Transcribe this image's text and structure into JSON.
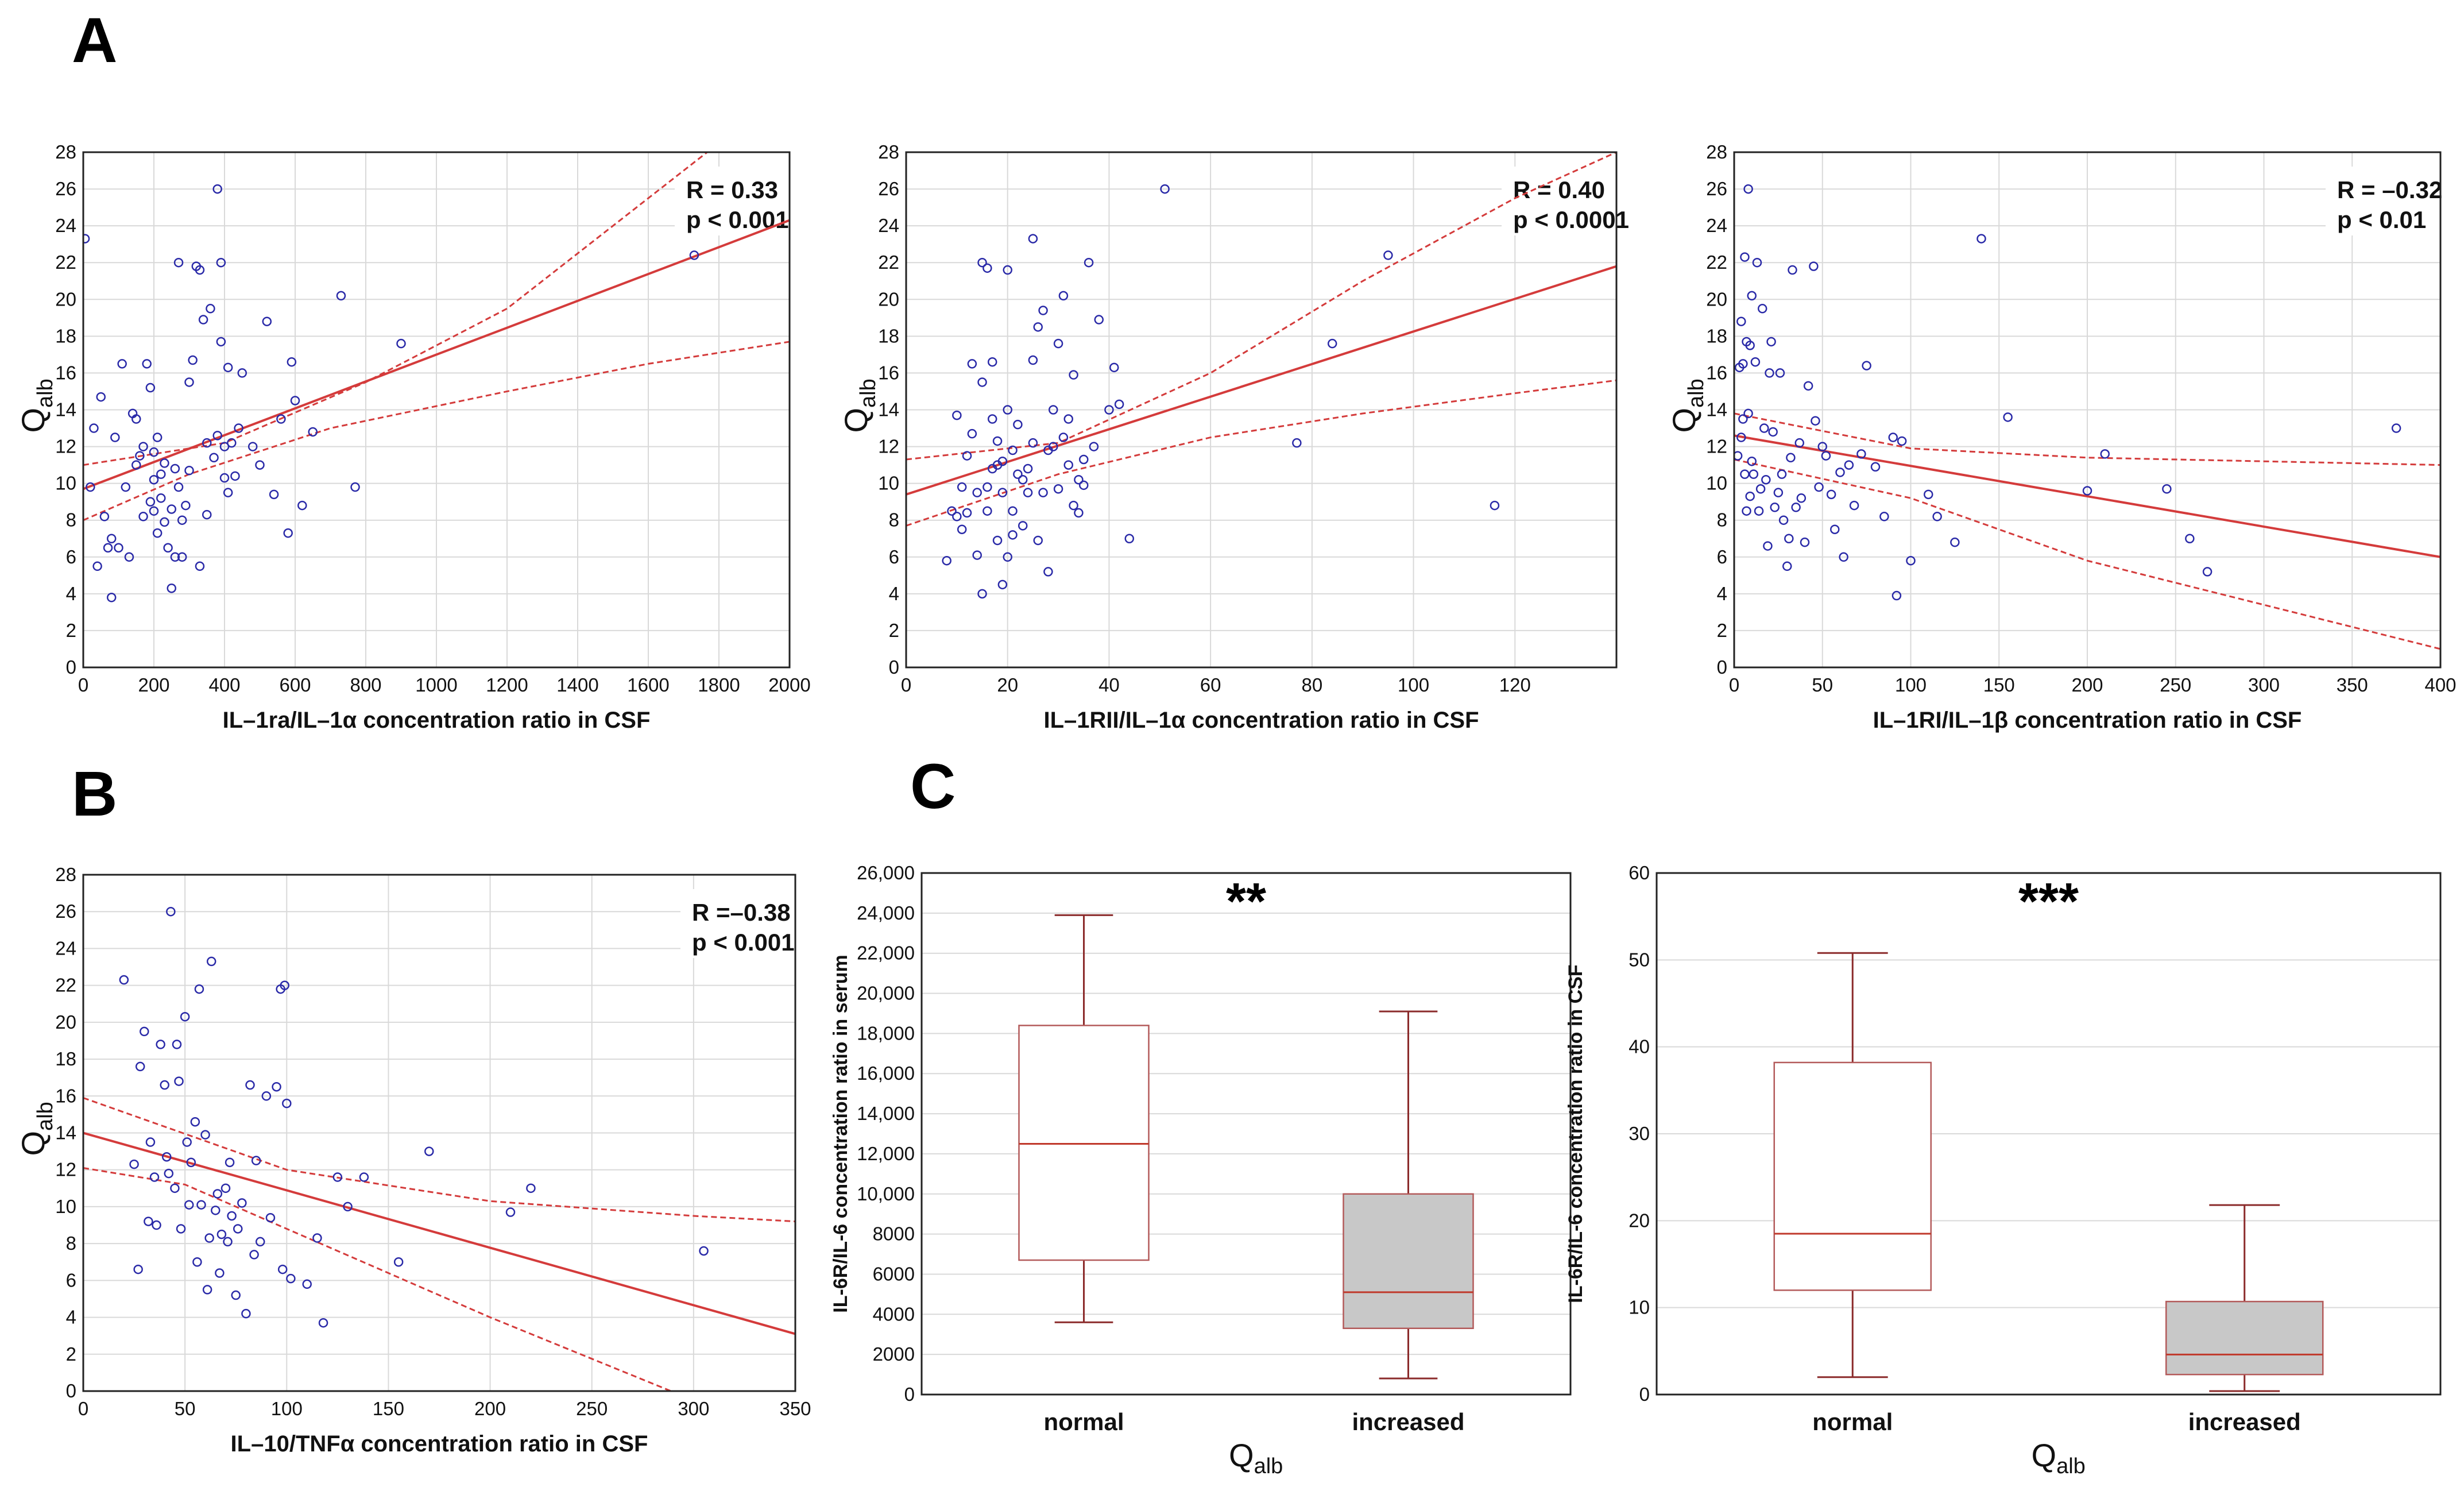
{
  "panels": {
    "A": "A",
    "B": "B",
    "C": "C"
  },
  "chart_data": [
    {
      "type": "scatter",
      "panel": "A",
      "title": "",
      "xlabel": "IL–1ra/IL–1α concentration ratio in CSF",
      "ylabel_main": "Q",
      "ylabel_sub": "alb",
      "xlim": [
        0,
        2000
      ],
      "ylim": [
        0,
        28
      ],
      "xticks": [
        0,
        200,
        400,
        600,
        800,
        1000,
        1200,
        1400,
        1600,
        1800,
        2000
      ],
      "xtick_labels": [
        "0",
        "200",
        "400",
        "600",
        "800",
        "1000",
        "1200",
        "1400",
        "1600",
        "1800",
        "2000"
      ],
      "yticks": [
        0,
        2,
        4,
        6,
        8,
        10,
        12,
        14,
        16,
        18,
        20,
        22,
        24,
        26,
        28
      ],
      "ytick_labels": [
        "0",
        "2",
        "4",
        "6",
        "8",
        "10",
        "12",
        "14",
        "16",
        "18",
        "20",
        "22",
        "24",
        "26",
        "28"
      ],
      "annotation": [
        "R = 0.33",
        "p < 0.001"
      ],
      "fit_line": [
        [
          0,
          9.7
        ],
        [
          2000,
          24.3
        ]
      ],
      "ci_upper": [
        [
          0,
          11.0
        ],
        [
          400,
          12.2
        ],
        [
          800,
          15.5
        ],
        [
          1200,
          19.5
        ],
        [
          1600,
          25.5
        ],
        [
          1800,
          28.5
        ]
      ],
      "ci_lower": [
        [
          0,
          8.0
        ],
        [
          300,
          10.5
        ],
        [
          700,
          13.0
        ],
        [
          1200,
          15.0
        ],
        [
          1600,
          16.5
        ],
        [
          2000,
          17.7
        ]
      ],
      "x": [
        5,
        20,
        30,
        40,
        50,
        60,
        70,
        80,
        80,
        90,
        100,
        110,
        120,
        130,
        140,
        150,
        150,
        160,
        170,
        170,
        180,
        190,
        190,
        200,
        200,
        200,
        210,
        210,
        220,
        220,
        230,
        230,
        240,
        250,
        250,
        260,
        260,
        270,
        270,
        280,
        280,
        290,
        300,
        300,
        310,
        320,
        330,
        330,
        340,
        350,
        350,
        360,
        370,
        380,
        380,
        390,
        390,
        400,
        400,
        410,
        410,
        420,
        430,
        440,
        450,
        480,
        500,
        520,
        540,
        560,
        580,
        590,
        600,
        620,
        650,
        730,
        770,
        900,
        1730
      ],
      "y": [
        23.3,
        9.8,
        13.0,
        5.5,
        14.7,
        8.2,
        6.5,
        3.8,
        7.0,
        12.5,
        6.5,
        16.5,
        9.8,
        6.0,
        13.8,
        11.0,
        13.5,
        11.5,
        8.2,
        12.0,
        16.5,
        9.0,
        15.2,
        11.7,
        8.5,
        10.2,
        12.5,
        7.3,
        9.2,
        10.5,
        7.9,
        11.1,
        6.5,
        4.3,
        8.6,
        10.8,
        6.0,
        9.8,
        22.0,
        6.0,
        8.0,
        8.8,
        10.7,
        15.5,
        16.7,
        21.8,
        5.5,
        21.6,
        18.9,
        8.3,
        12.2,
        19.5,
        11.4,
        12.6,
        26.0,
        17.7,
        22.0,
        10.3,
        12.0,
        9.5,
        16.3,
        12.2,
        10.4,
        13.0,
        16.0,
        12.0,
        11.0,
        18.8,
        9.4,
        13.5,
        7.3,
        16.6,
        14.5,
        8.8,
        12.8,
        20.2,
        9.8,
        17.6,
        22.4
      ]
    },
    {
      "type": "scatter",
      "panel": "A",
      "title": "",
      "xlabel": "IL–1RII/IL–1α concentration ratio in CSF",
      "ylabel_main": "Q",
      "ylabel_sub": "alb",
      "xlim": [
        0,
        140
      ],
      "ylim": [
        0,
        28
      ],
      "xticks": [
        0,
        20,
        40,
        60,
        80,
        100,
        120
      ],
      "xtick_labels": [
        "0",
        "20",
        "40",
        "60",
        "80",
        "100",
        "120"
      ],
      "yticks": [
        0,
        2,
        4,
        6,
        8,
        10,
        12,
        14,
        16,
        18,
        20,
        22,
        24,
        26,
        28
      ],
      "ytick_labels": [
        "0",
        "2",
        "4",
        "6",
        "8",
        "10",
        "12",
        "14",
        "16",
        "18",
        "20",
        "22",
        "24",
        "26",
        "28"
      ],
      "annotation": [
        "R = 0.40",
        "p < 0.0001"
      ],
      "fit_line": [
        [
          0,
          9.4
        ],
        [
          140,
          21.8
        ]
      ],
      "ci_upper": [
        [
          0,
          11.3
        ],
        [
          30,
          12.2
        ],
        [
          60,
          16.0
        ],
        [
          90,
          21.0
        ],
        [
          120,
          25.5
        ],
        [
          140,
          28.0
        ]
      ],
      "ci_lower": [
        [
          0,
          7.7
        ],
        [
          30,
          10.5
        ],
        [
          60,
          12.5
        ],
        [
          90,
          13.8
        ],
        [
          120,
          14.9
        ],
        [
          140,
          15.6
        ]
      ],
      "x": [
        8,
        9,
        10,
        10,
        11,
        11,
        12,
        12,
        13,
        13,
        14,
        14,
        15,
        15,
        15,
        16,
        16,
        16,
        17,
        17,
        17,
        18,
        18,
        18,
        19,
        19,
        19,
        20,
        20,
        20,
        21,
        21,
        21,
        22,
        22,
        23,
        23,
        24,
        24,
        25,
        25,
        25,
        26,
        26,
        27,
        27,
        28,
        28,
        29,
        29,
        30,
        30,
        31,
        31,
        32,
        32,
        33,
        33,
        34,
        34,
        35,
        35,
        36,
        37,
        38,
        40,
        41,
        42,
        44,
        51,
        77,
        84,
        95,
        116
      ],
      "y": [
        5.8,
        8.5,
        13.7,
        8.2,
        9.8,
        7.5,
        11.5,
        8.4,
        16.5,
        12.7,
        9.5,
        6.1,
        15.5,
        4.0,
        22.0,
        9.8,
        8.5,
        21.7,
        10.8,
        13.5,
        16.6,
        11.0,
        6.9,
        12.3,
        11.2,
        9.5,
        4.5,
        14.0,
        21.6,
        6.0,
        11.8,
        8.5,
        7.2,
        10.5,
        13.2,
        7.7,
        10.2,
        10.8,
        9.5,
        23.3,
        16.7,
        12.2,
        6.9,
        18.5,
        19.4,
        9.5,
        11.8,
        5.2,
        14.0,
        12.0,
        17.6,
        9.7,
        12.5,
        20.2,
        11.0,
        13.5,
        8.8,
        15.9,
        10.2,
        8.4,
        9.9,
        11.3,
        22.0,
        12.0,
        18.9,
        14.0,
        16.3,
        14.3,
        7.0,
        26.0,
        12.2,
        17.6,
        22.4,
        8.8
      ]
    },
    {
      "type": "scatter",
      "panel": "A",
      "title": "",
      "xlabel": "IL–1RI/IL–1β concentration ratio in CSF",
      "ylabel_main": "Q",
      "ylabel_sub": "alb",
      "xlim": [
        0,
        400
      ],
      "ylim": [
        0,
        28
      ],
      "xticks": [
        0,
        50,
        100,
        150,
        200,
        250,
        300,
        350,
        400
      ],
      "xtick_labels": [
        "0",
        "50",
        "100",
        "150",
        "200",
        "250",
        "300",
        "350",
        "400"
      ],
      "yticks": [
        0,
        2,
        4,
        6,
        8,
        10,
        12,
        14,
        16,
        18,
        20,
        22,
        24,
        26,
        28
      ],
      "ytick_labels": [
        "0",
        "2",
        "4",
        "6",
        "8",
        "10",
        "12",
        "14",
        "16",
        "18",
        "20",
        "22",
        "24",
        "26",
        "28"
      ],
      "annotation": [
        "R = –0.32",
        "p < 0.01"
      ],
      "fit_line": [
        [
          0,
          12.6
        ],
        [
          400,
          6.0
        ]
      ],
      "ci_upper": [
        [
          0,
          13.8
        ],
        [
          100,
          11.9
        ],
        [
          200,
          11.4
        ],
        [
          300,
          11.2
        ],
        [
          400,
          11.0
        ]
      ],
      "ci_lower": [
        [
          0,
          11.3
        ],
        [
          100,
          9.2
        ],
        [
          200,
          5.8
        ],
        [
          300,
          3.4
        ],
        [
          400,
          1.0
        ]
      ],
      "x": [
        2,
        3,
        4,
        4,
        5,
        5,
        6,
        6,
        7,
        7,
        8,
        8,
        9,
        9,
        10,
        10,
        11,
        12,
        13,
        14,
        15,
        16,
        17,
        18,
        19,
        20,
        21,
        22,
        23,
        25,
        26,
        27,
        28,
        30,
        31,
        32,
        33,
        35,
        37,
        38,
        40,
        42,
        45,
        46,
        48,
        50,
        52,
        55,
        57,
        60,
        62,
        65,
        68,
        72,
        75,
        80,
        85,
        90,
        92,
        95,
        100,
        110,
        115,
        125,
        140,
        155,
        200,
        210,
        245,
        258,
        268,
        375
      ],
      "y": [
        11.5,
        16.3,
        18.8,
        12.5,
        16.5,
        13.5,
        10.5,
        22.3,
        17.7,
        8.5,
        13.8,
        26.0,
        9.3,
        17.5,
        11.2,
        20.2,
        10.5,
        16.6,
        22.0,
        8.5,
        9.7,
        19.5,
        13.0,
        10.2,
        6.6,
        16.0,
        17.7,
        12.8,
        8.7,
        9.5,
        16.0,
        10.5,
        8.0,
        5.5,
        7.0,
        11.4,
        21.6,
        8.7,
        12.2,
        9.2,
        6.8,
        15.3,
        21.8,
        13.4,
        9.8,
        12.0,
        11.5,
        9.4,
        7.5,
        10.6,
        6.0,
        11.0,
        8.8,
        11.6,
        16.4,
        10.9,
        8.2,
        12.5,
        3.9,
        12.3,
        5.8,
        9.4,
        8.2,
        6.8,
        23.3,
        13.6,
        9.6,
        11.6,
        9.7,
        7.0,
        5.2,
        13.0
      ]
    },
    {
      "type": "scatter",
      "panel": "B",
      "title": "",
      "xlabel": "IL–10/TNFα concentration ratio in CSF",
      "ylabel_main": "Q",
      "ylabel_sub": "alb",
      "xlim": [
        0,
        350
      ],
      "ylim": [
        0,
        28
      ],
      "xticks": [
        0,
        50,
        100,
        150,
        200,
        250,
        300,
        350
      ],
      "xtick_labels": [
        "0",
        "50",
        "100",
        "150",
        "200",
        "250",
        "300",
        "350"
      ],
      "yticks": [
        0,
        2,
        4,
        6,
        8,
        10,
        12,
        14,
        16,
        18,
        20,
        22,
        24,
        26,
        28
      ],
      "ytick_labels": [
        "0",
        "2",
        "4",
        "6",
        "8",
        "10",
        "12",
        "14",
        "16",
        "18",
        "20",
        "22",
        "24",
        "26",
        "28"
      ],
      "annotation": [
        "R =–0.38",
        "p < 0.001"
      ],
      "fit_line": [
        [
          0,
          14.0
        ],
        [
          350,
          3.1
        ]
      ],
      "ci_upper": [
        [
          0,
          15.9
        ],
        [
          100,
          12.0
        ],
        [
          200,
          10.3
        ],
        [
          300,
          9.5
        ],
        [
          350,
          9.2
        ]
      ],
      "ci_lower": [
        [
          0,
          12.1
        ],
        [
          50,
          11.2
        ],
        [
          100,
          8.8
        ],
        [
          200,
          4.0
        ],
        [
          300,
          -0.5
        ]
      ],
      "x": [
        20,
        25,
        27,
        28,
        30,
        32,
        33,
        35,
        36,
        38,
        40,
        41,
        42,
        43,
        45,
        46,
        47,
        48,
        50,
        51,
        52,
        53,
        55,
        56,
        57,
        58,
        60,
        61,
        62,
        63,
        65,
        66,
        67,
        68,
        70,
        71,
        72,
        73,
        75,
        76,
        78,
        80,
        82,
        84,
        85,
        87,
        90,
        92,
        95,
        97,
        98,
        99,
        100,
        102,
        110,
        115,
        118,
        125,
        130,
        138,
        155,
        170,
        210,
        220,
        305
      ],
      "y": [
        22.3,
        12.3,
        6.6,
        17.6,
        19.5,
        9.2,
        13.5,
        11.6,
        9.0,
        18.8,
        16.6,
        12.7,
        11.8,
        26.0,
        11.0,
        18.8,
        16.8,
        8.8,
        20.3,
        13.5,
        10.1,
        12.4,
        14.6,
        7.0,
        21.8,
        10.1,
        13.9,
        5.5,
        8.3,
        23.3,
        9.8,
        10.7,
        6.4,
        8.5,
        11.0,
        8.1,
        12.4,
        9.5,
        5.2,
        8.8,
        10.2,
        4.2,
        16.6,
        7.4,
        12.5,
        8.1,
        16.0,
        9.4,
        16.5,
        21.8,
        6.6,
        22.0,
        15.6,
        6.1,
        5.8,
        8.3,
        3.7,
        11.6,
        10.0,
        11.6,
        7.0,
        13.0,
        9.7,
        11.0,
        7.6
      ]
    },
    {
      "type": "box",
      "panel": "C",
      "title": "",
      "xlabel_main": "Q",
      "xlabel_sub": "alb",
      "ylabel": "IL-6R/IL-6 concentration ratio in serum",
      "ylim": [
        0,
        26000
      ],
      "yticks": [
        0,
        2000,
        4000,
        6000,
        8000,
        10000,
        12000,
        14000,
        16000,
        18000,
        20000,
        22000,
        24000,
        26000
      ],
      "ytick_labels": [
        "0",
        "2000",
        "4000",
        "6000",
        "8000",
        "10,000",
        "12,000",
        "14,000",
        "16,000",
        "18,000",
        "20,000",
        "22,000",
        "24,000",
        "26,000"
      ],
      "categories": [
        "normal",
        "increased"
      ],
      "boxes": [
        {
          "min": 3600,
          "q1": 6700,
          "median": 12500,
          "q3": 18400,
          "max": 23900,
          "fill": "#ffffff"
        },
        {
          "min": 800,
          "q1": 3300,
          "median": 5100,
          "q3": 10000,
          "max": 19100,
          "fill": "#c8c8c8"
        }
      ],
      "significance": "**"
    },
    {
      "type": "box",
      "panel": "C",
      "title": "",
      "xlabel_main": "Q",
      "xlabel_sub": "alb",
      "ylabel": "IL-6R/IL-6 concentration ratio in CSF",
      "ylim": [
        0,
        60
      ],
      "yticks": [
        0,
        10,
        20,
        30,
        40,
        50,
        60
      ],
      "ytick_labels": [
        "0",
        "10",
        "20",
        "30",
        "40",
        "50",
        "60"
      ],
      "categories": [
        "normal",
        "increased"
      ],
      "boxes": [
        {
          "min": 2.0,
          "q1": 12.0,
          "median": 18.5,
          "q3": 38.2,
          "max": 50.8,
          "fill": "#ffffff"
        },
        {
          "min": 0.4,
          "q1": 2.3,
          "median": 4.6,
          "q3": 10.7,
          "max": 21.8,
          "fill": "#c8c8c8"
        }
      ],
      "significance": "***"
    }
  ]
}
